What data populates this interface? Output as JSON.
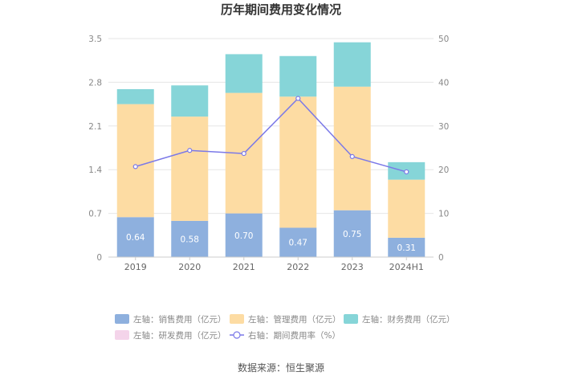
{
  "chart_data": {
    "type": "bar",
    "title": "历年期间费用变化情况",
    "categories": [
      "2019",
      "2020",
      "2021",
      "2022",
      "2023",
      "2024H1"
    ],
    "left_axis": {
      "ylim": [
        0,
        3.5
      ],
      "ticks": [
        "0",
        "0.7",
        "1.4",
        "2.1",
        "2.8",
        "3.5"
      ]
    },
    "right_axis": {
      "ylim": [
        0,
        50
      ],
      "ticks": [
        "0",
        "10",
        "20",
        "30",
        "40",
        "50"
      ]
    },
    "series": [
      {
        "name": "左轴：销售费用（亿元）",
        "axis": "left",
        "color": "#8eb0de",
        "values": [
          0.64,
          0.58,
          0.7,
          0.47,
          0.75,
          0.31
        ],
        "labels": [
          "0.64",
          "0.58",
          "0.70",
          "0.47",
          "0.75",
          "0.31"
        ]
      },
      {
        "name": "左轴：管理费用（亿元）",
        "axis": "left",
        "color": "#fddca3",
        "values": [
          1.81,
          1.67,
          1.93,
          2.1,
          1.98,
          0.93
        ]
      },
      {
        "name": "左轴：财务费用（亿元）",
        "axis": "left",
        "color": "#86d5d8",
        "values": [
          0.24,
          0.5,
          0.62,
          0.65,
          0.71,
          0.28
        ]
      },
      {
        "name": "左轴：研发费用（亿元）",
        "axis": "left",
        "color": "#f4d4ea",
        "values": [
          0,
          0,
          0,
          0,
          0,
          0
        ]
      },
      {
        "name": "右轴：期间费用率（%）",
        "axis": "right",
        "type": "line",
        "color": "#7b79e8",
        "values": [
          20.7,
          24.4,
          23.7,
          36.3,
          23.0,
          19.5
        ]
      }
    ]
  },
  "source": "数据来源：恒生聚源"
}
